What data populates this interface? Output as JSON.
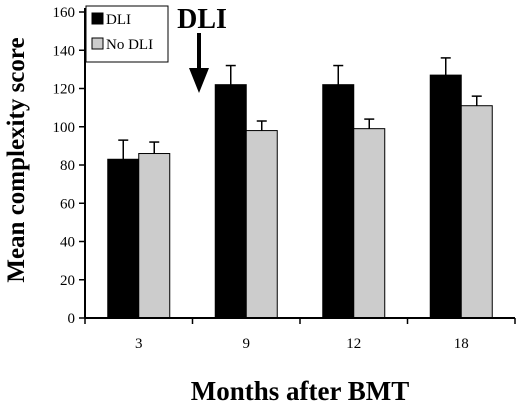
{
  "chart_data": {
    "type": "bar",
    "categories": [
      "3",
      "9",
      "12",
      "18"
    ],
    "series": [
      {
        "name": "DLI",
        "color": "#000000",
        "values": [
          83,
          122,
          122,
          127
        ],
        "errors": [
          10,
          10,
          10,
          9
        ]
      },
      {
        "name": "No DLI",
        "color": "#cccccc",
        "values": [
          86,
          98,
          99,
          111
        ],
        "errors": [
          6,
          5,
          5,
          5
        ]
      }
    ],
    "title": "",
    "xlabel": "Months after BMT",
    "ylabel": "Mean complexity score",
    "ylim": [
      0,
      160
    ],
    "yticks": [
      0,
      20,
      40,
      60,
      80,
      100,
      120,
      140,
      160
    ],
    "grid": false,
    "legend_position": "top-left",
    "annotation": {
      "text": "DLI",
      "points_to_category": "9"
    }
  }
}
